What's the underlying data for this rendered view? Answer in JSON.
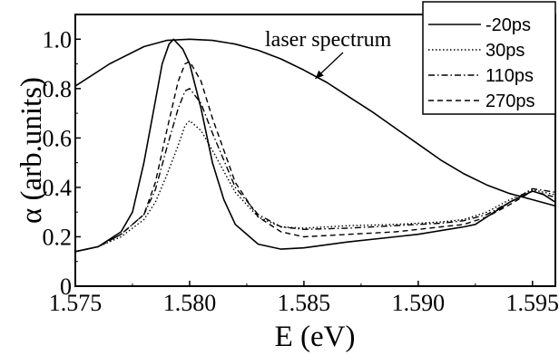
{
  "chart_data": {
    "type": "line",
    "xlabel": "E (eV)",
    "ylabel": "α (arb.units)",
    "xlim": [
      1.575,
      1.596
    ],
    "ylim": [
      0,
      1.1
    ],
    "xticks": [
      "1.575",
      "1.580",
      "1.585",
      "1.590",
      "1.595"
    ],
    "xtick_values": [
      1.575,
      1.58,
      1.585,
      1.59,
      1.595
    ],
    "yticks": [
      "0",
      "0.2",
      "0.4",
      "0.6",
      "0.8",
      "1.0"
    ],
    "ytick_values": [
      0,
      0.2,
      0.4,
      0.6,
      0.8,
      1.0
    ],
    "grid": false,
    "legend_position": "top-right",
    "annotation": {
      "text": "laser spectrum",
      "arrow_to": [
        1.5855,
        0.84
      ]
    },
    "series": [
      {
        "name": "laser spectrum",
        "in_legend": false,
        "style": "solid",
        "x": [
          1.575,
          1.5765,
          1.578,
          1.579,
          1.58,
          1.581,
          1.582,
          1.583,
          1.584,
          1.585,
          1.586,
          1.587,
          1.588,
          1.589,
          1.59,
          1.591,
          1.592,
          1.593,
          1.594,
          1.595,
          1.596
        ],
        "y": [
          0.81,
          0.9,
          0.97,
          0.995,
          1.0,
          0.995,
          0.98,
          0.955,
          0.92,
          0.875,
          0.825,
          0.765,
          0.705,
          0.64,
          0.575,
          0.51,
          0.455,
          0.41,
          0.375,
          0.35,
          0.325
        ]
      },
      {
        "name": "-20ps",
        "style": "solid",
        "x": [
          1.575,
          1.576,
          1.577,
          1.5775,
          1.578,
          1.5785,
          1.5788,
          1.5791,
          1.5793,
          1.5797,
          1.58,
          1.5805,
          1.581,
          1.5815,
          1.582,
          1.583,
          1.584,
          1.585,
          1.587,
          1.589,
          1.59,
          1.591,
          1.592,
          1.5925,
          1.593,
          1.594,
          1.595,
          1.5955,
          1.596
        ],
        "y": [
          0.14,
          0.16,
          0.22,
          0.3,
          0.5,
          0.75,
          0.9,
          0.98,
          1.0,
          0.96,
          0.9,
          0.72,
          0.5,
          0.35,
          0.25,
          0.17,
          0.15,
          0.155,
          0.18,
          0.2,
          0.21,
          0.225,
          0.24,
          0.25,
          0.28,
          0.34,
          0.385,
          0.37,
          0.34
        ]
      },
      {
        "name": "30ps",
        "style": "dotted",
        "x": [
          1.575,
          1.576,
          1.577,
          1.578,
          1.5785,
          1.579,
          1.5795,
          1.5798,
          1.58,
          1.5805,
          1.581,
          1.582,
          1.583,
          1.584,
          1.585,
          1.587,
          1.589,
          1.59,
          1.591,
          1.592,
          1.593,
          1.594,
          1.595,
          1.596
        ],
        "y": [
          0.14,
          0.16,
          0.2,
          0.27,
          0.34,
          0.45,
          0.57,
          0.65,
          0.67,
          0.63,
          0.55,
          0.38,
          0.28,
          0.24,
          0.235,
          0.245,
          0.25,
          0.255,
          0.26,
          0.27,
          0.3,
          0.35,
          0.39,
          0.37
        ]
      },
      {
        "name": "110ps",
        "style": "dashdot",
        "x": [
          1.575,
          1.576,
          1.577,
          1.578,
          1.5785,
          1.579,
          1.5795,
          1.5798,
          1.58,
          1.5805,
          1.581,
          1.582,
          1.583,
          1.584,
          1.585,
          1.587,
          1.589,
          1.59,
          1.591,
          1.592,
          1.593,
          1.594,
          1.595,
          1.596
        ],
        "y": [
          0.14,
          0.16,
          0.21,
          0.29,
          0.39,
          0.56,
          0.72,
          0.79,
          0.8,
          0.74,
          0.62,
          0.4,
          0.29,
          0.24,
          0.23,
          0.235,
          0.245,
          0.25,
          0.255,
          0.265,
          0.29,
          0.34,
          0.395,
          0.38
        ]
      },
      {
        "name": "270ps",
        "style": "dashed",
        "x": [
          1.575,
          1.576,
          1.577,
          1.578,
          1.5785,
          1.579,
          1.5795,
          1.5798,
          1.58,
          1.5805,
          1.581,
          1.582,
          1.583,
          1.584,
          1.585,
          1.587,
          1.589,
          1.59,
          1.591,
          1.592,
          1.593,
          1.594,
          1.595,
          1.596
        ],
        "y": [
          0.14,
          0.16,
          0.21,
          0.29,
          0.42,
          0.63,
          0.83,
          0.9,
          0.91,
          0.83,
          0.68,
          0.42,
          0.28,
          0.22,
          0.2,
          0.21,
          0.22,
          0.23,
          0.24,
          0.25,
          0.28,
          0.33,
          0.385,
          0.36
        ]
      }
    ]
  }
}
